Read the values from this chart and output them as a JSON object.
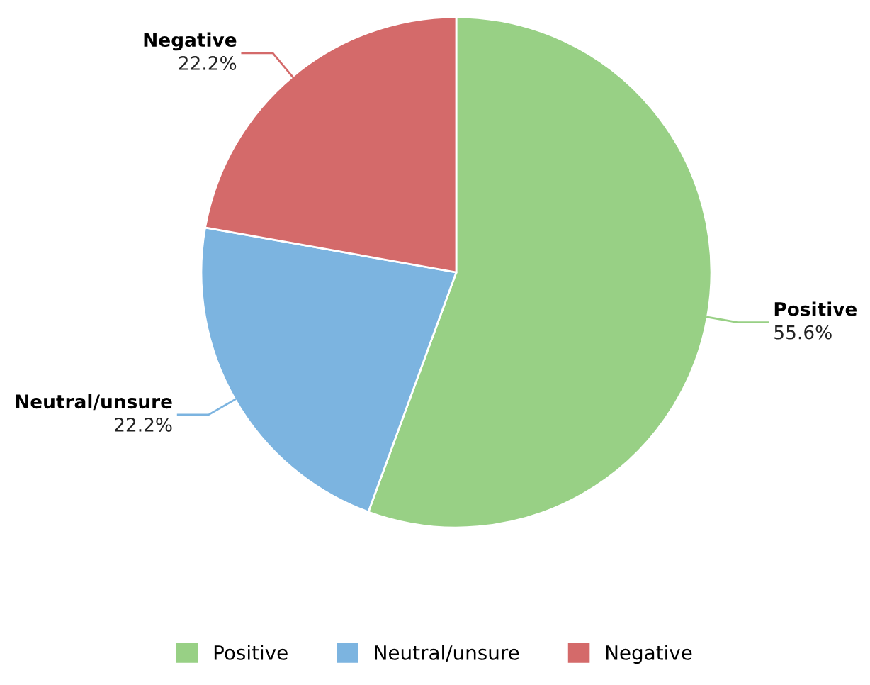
{
  "chart_data": {
    "type": "pie",
    "categories": [
      "Positive",
      "Neutral/unsure",
      "Negative"
    ],
    "values": [
      55.6,
      22.2,
      22.2
    ],
    "value_labels": [
      "55.6%",
      "22.2%",
      "22.2%"
    ],
    "colors": [
      "#98d085",
      "#7cb4e0",
      "#d46a6a"
    ],
    "legend": "bottom"
  }
}
